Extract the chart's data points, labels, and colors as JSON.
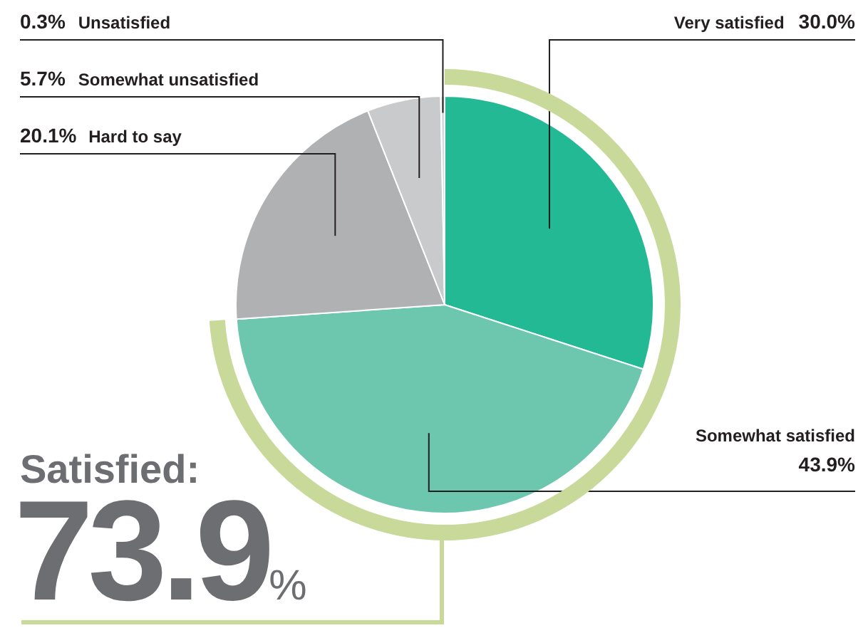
{
  "chart_data": {
    "type": "pie",
    "categories": [
      "Very satisfied",
      "Somewhat satisfied",
      "Hard to say",
      "Somewhat unsatisfied",
      "Unsatisfied"
    ],
    "values": [
      30.0,
      43.9,
      20.1,
      5.7,
      0.3
    ],
    "colors": [
      "#23b994",
      "#6cc7ae",
      "#b0b1b3",
      "#c9cacc",
      "#d9dadb"
    ],
    "value_labels": [
      "30.0%",
      "43.9%",
      "20.1%",
      "5.7%",
      "0.3%"
    ],
    "legend": false,
    "annotations": [
      "Satisfied:",
      "73.9%"
    ]
  }
}
